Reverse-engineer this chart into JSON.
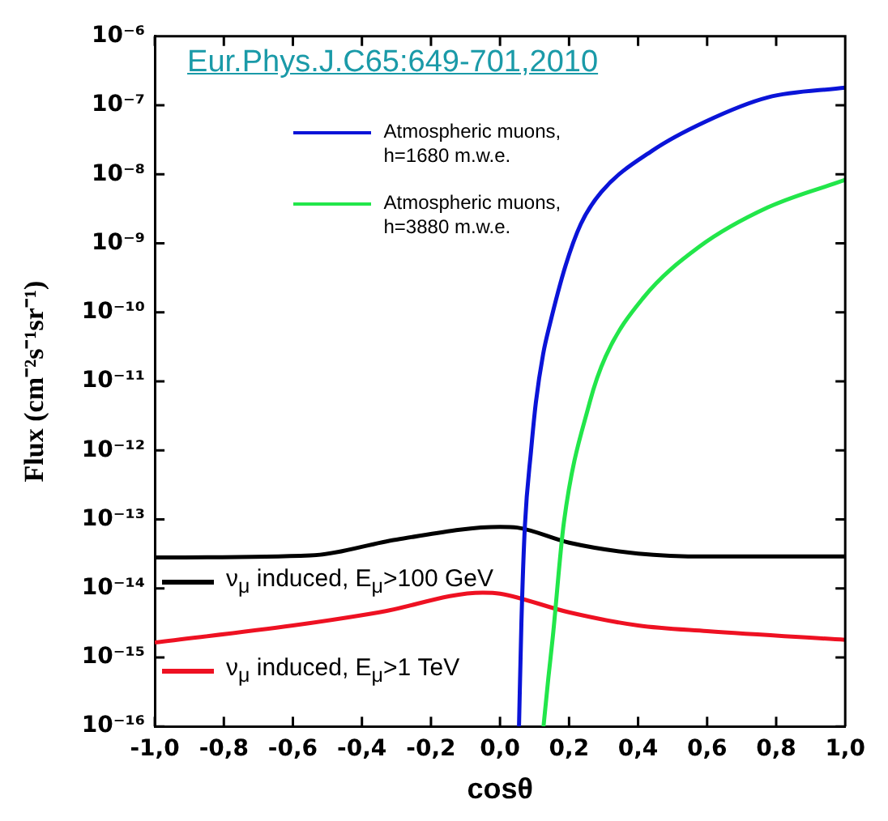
{
  "chart_data": {
    "type": "line",
    "xlabel": "cosθ",
    "ylabel": "Flux (cm⁻²s⁻¹sr⁻¹)",
    "log": "y",
    "grid": false,
    "legend": "left",
    "marker": "none",
    "line_style": "solid",
    "annotations": [
      "Eur.Phys.J.C65:649-701,2010"
    ],
    "xlim": [
      -1,
      1
    ],
    "xticks": [
      {
        "value": -1,
        "label": "-1,0"
      },
      {
        "value": -0.8,
        "label": "-0,8"
      },
      {
        "value": -0.6,
        "label": "-0,6"
      },
      {
        "value": -0.4,
        "label": "-0,4"
      },
      {
        "value": -0.2,
        "label": "-0,2"
      },
      {
        "value": 0,
        "label": "0,0"
      },
      {
        "value": 0.2,
        "label": "0,2"
      },
      {
        "value": 0.4,
        "label": "0,4"
      },
      {
        "value": 0.6,
        "label": "0,6"
      },
      {
        "value": 0.8,
        "label": "0,8"
      },
      {
        "value": 1,
        "label": "1,0"
      }
    ],
    "ylim": [
      1e-16,
      1e-06
    ],
    "yticks": [
      {
        "value": 1e-16,
        "label": "10⁻¹⁶"
      },
      {
        "value": 1e-15,
        "label": "10⁻¹⁵"
      },
      {
        "value": 1e-14,
        "label": "10⁻¹⁴"
      },
      {
        "value": 1e-13,
        "label": "10⁻¹³"
      },
      {
        "value": 1e-12,
        "label": "10⁻¹²"
      },
      {
        "value": 1e-11,
        "label": "10⁻¹¹"
      },
      {
        "value": 1e-10,
        "label": "10⁻¹⁰"
      },
      {
        "value": 1e-09,
        "label": "10⁻⁹"
      },
      {
        "value": 1e-08,
        "label": "10⁻⁸"
      },
      {
        "value": 1e-07,
        "label": "10⁻⁷"
      },
      {
        "value": 1e-06,
        "label": "10⁻⁶"
      }
    ],
    "series": [
      {
        "name": "Atmospheric muons, h=1680 m.w.e.",
        "color": "#0a14d8",
        "x": [
          0.055,
          0.062,
          0.072,
          0.09,
          0.104,
          0.125,
          0.144,
          0.189,
          0.234,
          0.293,
          0.441,
          0.595,
          0.775,
          1.0
        ],
        "values": [
          1e-16,
          3.2e-15,
          7.9e-14,
          1e-12,
          5e-12,
          2.5e-11,
          6.6e-11,
          4.6e-10,
          1.9e-09,
          5.5e-09,
          2.2e-08,
          5.8e-08,
          1.3e-07,
          1.8e-07
        ]
      },
      {
        "name": "Atmospheric muons, h=3880 m.w.e.",
        "color": "#22e64a",
        "x": [
          0.126,
          0.14,
          0.153,
          0.185,
          0.26,
          0.306,
          0.414,
          0.577,
          0.775,
          1.0
        ],
        "values": [
          1e-16,
          5e-16,
          2e-15,
          9e-14,
          5e-12,
          2.3e-11,
          1.6e-10,
          8.9e-10,
          3.3e-09,
          8.3e-09
        ]
      },
      {
        "name": "ν$_{μ}$ induced, E$_{μ}$>100 GeV",
        "color": "#000000",
        "x": [
          -1,
          -0.55,
          -0.3,
          0,
          0.05,
          0.2,
          0.4,
          0.6,
          1.0
        ],
        "values": [
          2.8e-14,
          3e-14,
          5.1e-14,
          7.8e-14,
          7.6e-14,
          4.6e-14,
          3.2e-14,
          2.9e-14,
          2.9e-14
        ]
      },
      {
        "name": "ν$_{μ}$ induced, E$_{μ}$>1 TeV",
        "color": "#ee1122",
        "x": [
          -1,
          -0.6,
          -0.35,
          -0.05,
          0,
          0.2,
          0.4,
          0.6,
          1.0
        ],
        "values": [
          1.65e-15,
          2.9e-15,
          4.5e-15,
          8.7e-15,
          8.4e-15,
          4.5e-15,
          2.9e-15,
          2.4e-15,
          1.8e-15
        ]
      }
    ]
  }
}
